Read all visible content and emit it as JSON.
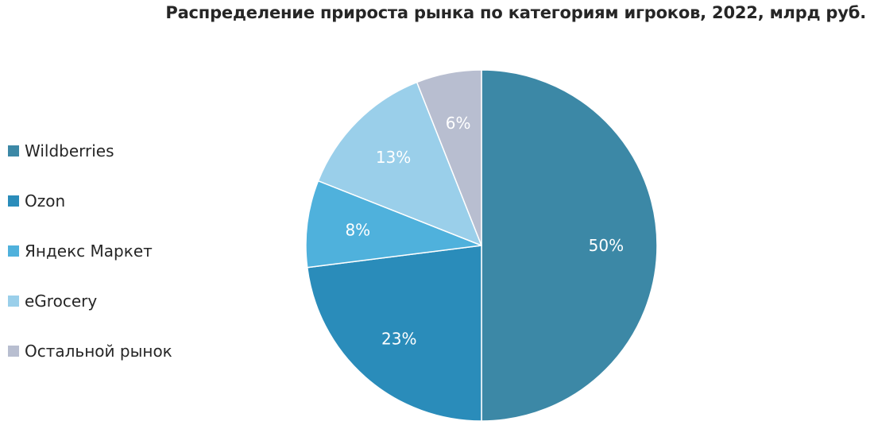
{
  "chart_data": {
    "type": "pie",
    "title": "Распределение прироста рынка по категориям игроков, 2022, млрд руб.",
    "categories": [
      "Wildberries",
      "Ozon",
      "Яндекс Маркет",
      "eGrocery",
      "Остальной рынок"
    ],
    "values": [
      50,
      23,
      8,
      13,
      6
    ],
    "labels": [
      "50%",
      "23%",
      "8%",
      "13%",
      "6%"
    ],
    "colors": [
      "#3c88a6",
      "#2a8cba",
      "#4fb1dc",
      "#9acfea",
      "#b8bed0"
    ],
    "start_angle": "12 o'clock",
    "direction": "clockwise",
    "legend_position": "left"
  }
}
